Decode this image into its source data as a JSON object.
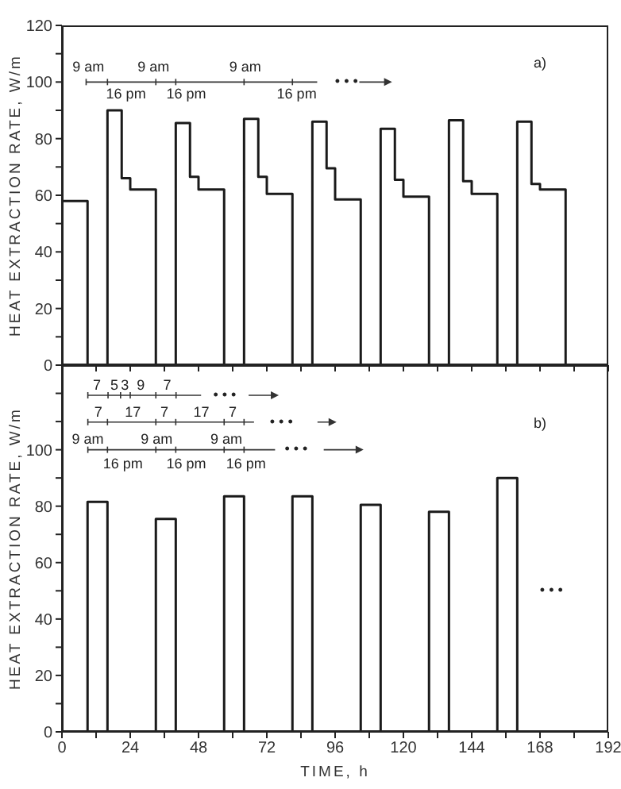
{
  "chart_data": [
    {
      "type": "step",
      "ylabel": "HEAT EXTRACTION RATE, W/m",
      "marker": "none",
      "tick_labels": "y",
      "xlim": [
        0,
        192
      ],
      "xticks": [
        0,
        {
          "value": 12,
          "label": null
        },
        24,
        {
          "value": 36,
          "label": null
        },
        48,
        {
          "value": 60,
          "label": null
        },
        72,
        {
          "value": 84,
          "label": null
        },
        96,
        {
          "value": 108,
          "label": null
        },
        120,
        {
          "value": 132,
          "label": null
        },
        144,
        {
          "value": 156,
          "label": null
        },
        168,
        {
          "value": 180,
          "label": null
        },
        192
      ],
      "ylim": [
        0,
        120
      ],
      "yticks": [
        0,
        {
          "value": 10,
          "label": null
        },
        20,
        {
          "value": 30,
          "label": null
        },
        40,
        {
          "value": 50,
          "label": null
        },
        60,
        {
          "value": 70,
          "label": null
        },
        80,
        {
          "value": 90,
          "label": null
        },
        100,
        {
          "value": 110,
          "label": null
        },
        120
      ],
      "series": [
        {
          "color": "#1a1a1a",
          "x": [
            0,
            9,
            16,
            21,
            24,
            33,
            40,
            45,
            48,
            57,
            64,
            69,
            72,
            81,
            88,
            93,
            96,
            105,
            112,
            117,
            120,
            129,
            136,
            141,
            144,
            153,
            160,
            165,
            168,
            177
          ],
          "values": [
            58,
            0,
            90,
            66,
            62,
            0,
            85.5,
            66.5,
            62,
            0,
            87,
            66.5,
            60.5,
            0,
            86,
            69.5,
            58.5,
            0,
            83.5,
            65.5,
            59.5,
            0,
            86.5,
            65,
            60.5,
            0,
            86,
            64,
            62,
            0
          ]
        }
      ],
      "annotations": [
        "9 am",
        "16 pm",
        "9 am",
        "16 pm",
        "9 am",
        "16 pm",
        "• • •",
        "a)"
      ]
    },
    {
      "type": "step",
      "ylabel": "HEAT EXTRACTION RATE, W/m",
      "xlabel": "TIME, h",
      "marker": "none",
      "xlim": [
        0,
        192
      ],
      "xticks": [
        0,
        {
          "value": 12,
          "label": null
        },
        24,
        {
          "value": 36,
          "label": null
        },
        48,
        {
          "value": 60,
          "label": null
        },
        72,
        {
          "value": 84,
          "label": null
        },
        96,
        {
          "value": 108,
          "label": null
        },
        120,
        {
          "value": 132,
          "label": null
        },
        144,
        {
          "value": 156,
          "label": null
        },
        168,
        {
          "value": 180,
          "label": null
        },
        192
      ],
      "ylim": [
        0,
        130
      ],
      "yticks": [
        0,
        {
          "value": 10,
          "label": null
        },
        20,
        {
          "value": 30,
          "label": null
        },
        40,
        {
          "value": 50,
          "label": null
        },
        60,
        {
          "value": 70,
          "label": null
        },
        80,
        {
          "value": 90,
          "label": null
        },
        100,
        {
          "value": 110,
          "label": null
        },
        {
          "value": 120,
          "label": null
        }
      ],
      "series": [
        {
          "color": "#1a1a1a",
          "x": [
            0,
            9,
            16,
            33,
            40,
            57,
            64,
            81,
            88,
            105,
            112,
            129,
            136,
            153,
            160
          ],
          "values": [
            0,
            81.5,
            0,
            75.5,
            0,
            83.5,
            0,
            83.5,
            0,
            80.5,
            0,
            78,
            0,
            90,
            0
          ]
        }
      ],
      "annotations": [
        "7",
        "5",
        "3",
        "9",
        "7",
        "• • •",
        "7",
        "17",
        "7",
        "17",
        "7",
        "• • •",
        "9 am",
        "16 pm",
        "9 am",
        "16 pm",
        "9 am",
        "16 pm",
        "• • •",
        "b)",
        "• • •"
      ]
    }
  ]
}
